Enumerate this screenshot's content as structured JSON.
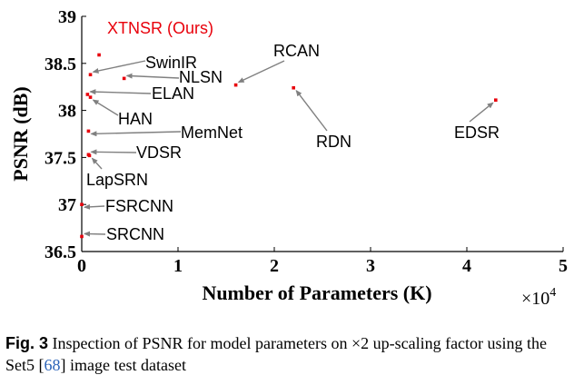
{
  "chart_data": {
    "type": "scatter",
    "xlabel": "Number of Parameters (K)",
    "ylabel": "PSNR (dB)",
    "x_multiplier": "×10",
    "x_multiplier_exp": "4",
    "xlim": [
      0,
      5
    ],
    "ylim": [
      36.5,
      39
    ],
    "x_ticks": [
      "0",
      "1",
      "2",
      "3",
      "4",
      "5"
    ],
    "y_ticks": [
      "36.5",
      "37",
      "37.5",
      "38",
      "38.5",
      "39"
    ],
    "grid": false,
    "highlight_color": "#e8000b",
    "point_color": "#e8000b",
    "label_color": "#000000",
    "arrow_color": "#808080",
    "points": [
      {
        "label": "XTNSR (Ours)",
        "x": 0.18,
        "y": 38.59,
        "highlight": true
      },
      {
        "label": "SwinIR",
        "x": 0.09,
        "y": 38.38
      },
      {
        "label": "NLSN",
        "x": 0.44,
        "y": 38.34
      },
      {
        "label": "ELAN",
        "x": 0.06,
        "y": 38.17
      },
      {
        "label": "HAN",
        "x": 0.09,
        "y": 38.14
      },
      {
        "label": "MemNet",
        "x": 0.07,
        "y": 37.78
      },
      {
        "label": "VDSR",
        "x": 0.07,
        "y": 37.53
      },
      {
        "label": "LapSRN",
        "x": 0.08,
        "y": 37.52
      },
      {
        "label": "FSRCNN",
        "x": 0.0,
        "y": 37.0
      },
      {
        "label": "SRCNN",
        "x": 0.0,
        "y": 36.66
      },
      {
        "label": "RCAN",
        "x": 1.6,
        "y": 38.27
      },
      {
        "label": "RDN",
        "x": 2.2,
        "y": 38.24
      },
      {
        "label": "EDSR",
        "x": 4.3,
        "y": 38.11
      }
    ]
  },
  "caption": {
    "fig_label": "Fig. 3",
    "text_before": "Inspection of PSNR for model parameters on ×2 up-scaling factor using the Set5 [",
    "ref": "68",
    "text_after": "] image test dataset"
  }
}
